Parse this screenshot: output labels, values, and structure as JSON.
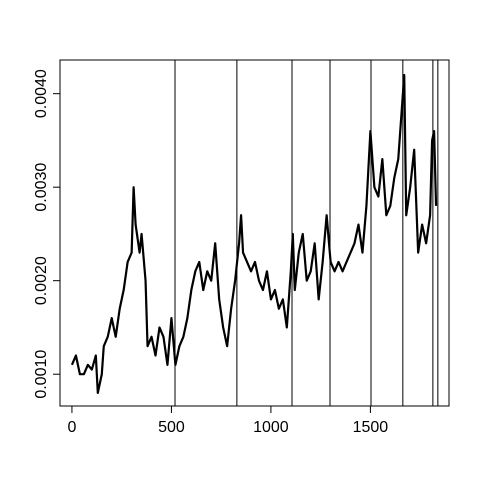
{
  "chart_data": {
    "type": "line",
    "x": [
      0,
      20,
      40,
      60,
      80,
      100,
      120,
      130,
      150,
      160,
      180,
      200,
      220,
      240,
      260,
      280,
      300,
      310,
      320,
      340,
      350,
      370,
      380,
      400,
      420,
      440,
      460,
      480,
      500,
      520,
      540,
      560,
      580,
      600,
      620,
      640,
      660,
      680,
      700,
      720,
      740,
      760,
      780,
      800,
      820,
      840,
      850,
      860,
      880,
      900,
      920,
      940,
      960,
      980,
      1000,
      1020,
      1040,
      1060,
      1080,
      1100,
      1110,
      1120,
      1140,
      1160,
      1180,
      1200,
      1220,
      1240,
      1260,
      1280,
      1300,
      1320,
      1340,
      1360,
      1380,
      1400,
      1420,
      1440,
      1460,
      1480,
      1500,
      1520,
      1540,
      1560,
      1580,
      1600,
      1620,
      1640,
      1660,
      1670,
      1680,
      1700,
      1720,
      1740,
      1760,
      1780,
      1800,
      1810,
      1820,
      1830
    ],
    "series": [
      {
        "color": "#000000",
        "values": [
          0.0011,
          0.0012,
          0.001,
          0.001,
          0.0011,
          0.00105,
          0.0012,
          0.0008,
          0.001,
          0.0013,
          0.0014,
          0.0016,
          0.0014,
          0.0017,
          0.0019,
          0.0022,
          0.0023,
          0.003,
          0.0026,
          0.0023,
          0.0025,
          0.002,
          0.0013,
          0.0014,
          0.0012,
          0.0015,
          0.0014,
          0.0011,
          0.0016,
          0.0011,
          0.0013,
          0.0014,
          0.0016,
          0.0019,
          0.0021,
          0.0022,
          0.0019,
          0.0021,
          0.002,
          0.0024,
          0.0018,
          0.0015,
          0.0013,
          0.0017,
          0.002,
          0.0024,
          0.0027,
          0.0023,
          0.0022,
          0.0021,
          0.0022,
          0.002,
          0.0019,
          0.0021,
          0.0018,
          0.0019,
          0.0017,
          0.0018,
          0.0015,
          0.0021,
          0.0025,
          0.0019,
          0.0023,
          0.0025,
          0.002,
          0.0021,
          0.0024,
          0.0018,
          0.0022,
          0.0027,
          0.0022,
          0.0021,
          0.0022,
          0.0021,
          0.0022,
          0.0023,
          0.0024,
          0.0026,
          0.0023,
          0.0028,
          0.0036,
          0.003,
          0.0029,
          0.0033,
          0.0027,
          0.0028,
          0.0031,
          0.0033,
          0.0039,
          0.0042,
          0.0027,
          0.003,
          0.0034,
          0.0023,
          0.0026,
          0.0024,
          0.0027,
          0.0035,
          0.0036,
          0.0028
        ]
      }
    ],
    "vlines": [
      518,
      829,
      1106,
      1297,
      1503,
      1663,
      1814,
      1839
    ],
    "xlim": [
      -60,
      1895
    ],
    "ylim": [
      0.00066,
      0.00436
    ],
    "xticks": [
      0,
      500,
      1000,
      1500
    ],
    "yticks": [
      {
        "value": 0.001,
        "label": "0.0010"
      },
      {
        "value": 0.002,
        "label": "0.0020"
      },
      {
        "value": 0.003,
        "label": "0.0030"
      },
      {
        "value": 0.004,
        "label": "0.0040"
      }
    ]
  }
}
